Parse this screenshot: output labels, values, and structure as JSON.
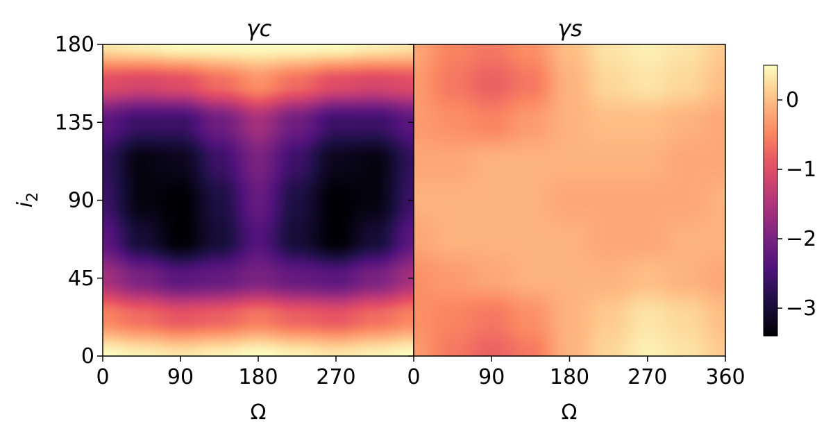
{
  "chart_data": [
    {
      "type": "heatmap",
      "title": "γc",
      "xlabel": "Ω",
      "ylabel": "i2",
      "xlim": [
        0,
        360
      ],
      "ylim": [
        0,
        180
      ],
      "xticks": [
        "0",
        "90",
        "180",
        "270"
      ],
      "yticks": [
        "0",
        "45",
        "90",
        "135",
        "180"
      ],
      "colormap": "magma",
      "x": [
        0,
        45,
        90,
        135,
        180,
        225,
        270,
        315,
        360
      ],
      "y": [
        0,
        22.5,
        45,
        67.5,
        90,
        112.5,
        135,
        157.5,
        180
      ],
      "z": [
        [
          0.5,
          0.4,
          0.3,
          0.4,
          0.5,
          0.4,
          0.3,
          0.4,
          0.5
        ],
        [
          -0.5,
          -0.7,
          -0.9,
          -0.8,
          -0.6,
          -0.8,
          -0.9,
          -0.7,
          -0.5
        ],
        [
          -1.6,
          -2.0,
          -2.3,
          -2.2,
          -2.0,
          -2.2,
          -2.3,
          -2.0,
          -1.6
        ],
        [
          -2.3,
          -3.0,
          -3.4,
          -3.0,
          -2.4,
          -3.0,
          -3.4,
          -3.0,
          -2.3
        ],
        [
          -2.6,
          -3.3,
          -3.4,
          -2.9,
          -2.2,
          -2.9,
          -3.4,
          -3.3,
          -2.6
        ],
        [
          -2.7,
          -3.3,
          -3.2,
          -2.6,
          -2.0,
          -2.6,
          -3.2,
          -3.3,
          -2.7
        ],
        [
          -2.3,
          -2.6,
          -2.6,
          -2.1,
          -1.6,
          -2.1,
          -2.6,
          -2.6,
          -2.3
        ],
        [
          -1.0,
          -1.1,
          -1.0,
          -0.7,
          -0.4,
          -0.7,
          -1.0,
          -1.1,
          -1.0
        ],
        [
          0.3,
          0.4,
          0.5,
          0.5,
          0.5,
          0.5,
          0.5,
          0.4,
          0.3
        ]
      ]
    },
    {
      "type": "heatmap",
      "title": "γs",
      "xlabel": "Ω",
      "xlim": [
        0,
        360
      ],
      "ylim": [
        0,
        180
      ],
      "xticks": [
        "0",
        "90",
        "180",
        "270",
        "360"
      ],
      "colormap": "magma",
      "x": [
        0,
        45,
        90,
        135,
        180,
        225,
        270,
        315,
        360
      ],
      "y": [
        0,
        22.5,
        45,
        67.5,
        90,
        112.5,
        135,
        157.5,
        180
      ],
      "z": [
        [
          -0.3,
          -0.6,
          -0.8,
          -0.6,
          -0.1,
          0.2,
          0.4,
          0.3,
          0.1
        ],
        [
          -0.4,
          -0.5,
          -0.6,
          -0.4,
          -0.1,
          0.1,
          0.3,
          0.2,
          0.0
        ],
        [
          -0.4,
          -0.3,
          -0.2,
          -0.1,
          -0.1,
          -0.1,
          0.0,
          -0.1,
          -0.2
        ],
        [
          -0.2,
          -0.1,
          -0.1,
          -0.1,
          -0.1,
          -0.2,
          -0.2,
          -0.1,
          -0.1
        ],
        [
          -0.1,
          -0.1,
          -0.1,
          -0.1,
          -0.2,
          -0.2,
          -0.2,
          -0.2,
          -0.1
        ],
        [
          -0.2,
          -0.2,
          -0.1,
          -0.1,
          -0.1,
          -0.1,
          -0.1,
          -0.2,
          -0.2
        ],
        [
          -0.3,
          -0.4,
          -0.5,
          -0.3,
          -0.1,
          0.0,
          0.0,
          -0.1,
          -0.2
        ],
        [
          -0.3,
          -0.6,
          -0.8,
          -0.6,
          -0.1,
          0.2,
          0.3,
          0.2,
          0.0
        ],
        [
          -0.2,
          -0.5,
          -0.6,
          -0.4,
          0.0,
          0.3,
          0.4,
          0.3,
          0.1
        ]
      ]
    }
  ],
  "colorbar": {
    "range": [
      -3.4,
      0.5
    ],
    "ticks": [
      {
        "value": 0,
        "label": "0"
      },
      {
        "value": -1,
        "label": "−1"
      },
      {
        "value": -2,
        "label": "−2"
      },
      {
        "value": -3,
        "label": "−3"
      }
    ]
  }
}
